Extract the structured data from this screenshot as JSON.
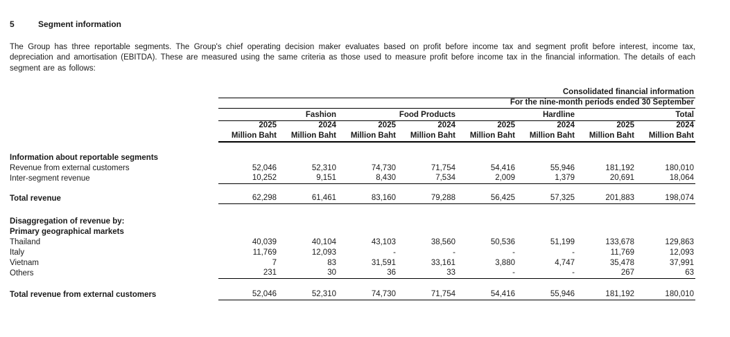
{
  "heading": {
    "number": "5",
    "title": "Segment information"
  },
  "intro": "The Group has three reportable segments. The Group's chief operating decision maker evaluates based on profit before income tax and segment profit before interest, income tax, depreciation and amortisation (EBITDA). These are measured using the same criteria as those used to measure profit before income tax in the financial information. The details of each segment are as follows:",
  "table": {
    "header": {
      "consolidated": "Consolidated financial information",
      "period": "For the nine-month periods ended 30 September",
      "groups": [
        "Fashion",
        "Food Products",
        "Hardline",
        "Total"
      ],
      "years": [
        "2025",
        "2024",
        "2025",
        "2024",
        "2025",
        "2024",
        "2025",
        "2024"
      ],
      "unit": "Million Baht"
    },
    "rows": [
      {
        "type": "section",
        "label": "Information about reportable segments"
      },
      {
        "type": "data",
        "label": "Revenue from external customers",
        "values": [
          "52,046",
          "52,310",
          "74,730",
          "71,754",
          "54,416",
          "55,946",
          "181,192",
          "180,010"
        ]
      },
      {
        "type": "data",
        "label": "Inter-segment revenue",
        "rule_below": true,
        "values": [
          "10,252",
          "9,151",
          "8,430",
          "7,534",
          "2,009",
          "1,379",
          "20,691",
          "18,064"
        ]
      },
      {
        "type": "spacer",
        "h": 14
      },
      {
        "type": "total",
        "label": "Total revenue",
        "rule_below": true,
        "values": [
          "62,298",
          "61,461",
          "83,160",
          "79,288",
          "56,425",
          "57,325",
          "201,883",
          "198,074"
        ]
      },
      {
        "type": "spacer",
        "h": 18
      },
      {
        "type": "section",
        "label": "Disaggregation of revenue by:"
      },
      {
        "type": "section",
        "label": "Primary geographical markets"
      },
      {
        "type": "data",
        "label": "Thailand",
        "values": [
          "40,039",
          "40,104",
          "43,103",
          "38,560",
          "50,536",
          "51,199",
          "133,678",
          "129,863"
        ]
      },
      {
        "type": "data",
        "label": "Italy",
        "values": [
          "11,769",
          "12,093",
          "-",
          "-",
          "-",
          "-",
          "11,769",
          "12,093"
        ]
      },
      {
        "type": "data",
        "label": "Vietnam",
        "values": [
          "7",
          "83",
          "31,591",
          "33,161",
          "3,880",
          "4,747",
          "35,478",
          "37,991"
        ]
      },
      {
        "type": "data",
        "label": "Others",
        "rule_below": true,
        "values": [
          "231",
          "30",
          "36",
          "33",
          "-",
          "-",
          "267",
          "63"
        ]
      },
      {
        "type": "spacer",
        "h": 14
      },
      {
        "type": "total",
        "label": "Total revenue from external customers",
        "rule_below": true,
        "tall": true,
        "values": [
          "52,046",
          "52,310",
          "74,730",
          "71,754",
          "54,416",
          "55,946",
          "181,192",
          "180,010"
        ]
      }
    ]
  }
}
